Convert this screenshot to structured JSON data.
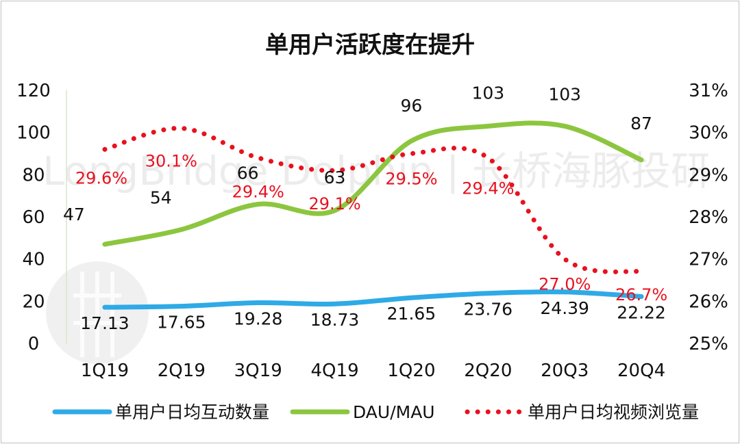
{
  "chart_data": {
    "type": "line",
    "title": "单用户活跃度在提升",
    "watermark": "LongBridge Dolphin | 长桥海豚投研",
    "categories": [
      "1Q19",
      "2Q19",
      "3Q19",
      "4Q19",
      "1Q20",
      "2Q20",
      "20Q3",
      "20Q4"
    ],
    "left_axis": {
      "ylim": [
        0,
        120
      ],
      "ticks": [
        "0",
        "20",
        "40",
        "60",
        "80",
        "100",
        "120"
      ]
    },
    "right_axis": {
      "ylim": [
        25,
        31
      ],
      "ticks": [
        "25%",
        "26%",
        "27%",
        "28%",
        "29%",
        "30%",
        "31%"
      ]
    },
    "series": [
      {
        "name": "单用户日均互动数量",
        "axis": "left",
        "style": "solid",
        "color": "#2eaae6",
        "values": [
          17.13,
          17.65,
          19.28,
          18.73,
          21.65,
          23.76,
          24.39,
          22.22
        ],
        "labels": [
          "17.13",
          "17.65",
          "19.28",
          "18.73",
          "21.65",
          "23.76",
          "24.39",
          "22.22"
        ]
      },
      {
        "name": "DAU/MAU",
        "axis": "left",
        "style": "solid",
        "color": "#8cc63f",
        "values": [
          47,
          54,
          66,
          63,
          96,
          103,
          103,
          87
        ],
        "labels": [
          "47",
          "54",
          "66",
          "63",
          "96",
          "103",
          "103",
          "87"
        ]
      },
      {
        "name": "单用户日均视频浏览量",
        "axis": "right",
        "style": "dotted",
        "color": "#e8111e",
        "values": [
          29.6,
          30.1,
          29.4,
          29.1,
          29.5,
          29.4,
          27.0,
          26.7
        ],
        "labels": [
          "29.6%",
          "30.1%",
          "29.4%",
          "29.1%",
          "29.5%",
          "29.4%",
          "27.0%",
          "26.7%"
        ]
      }
    ],
    "grid": false,
    "legend": "bottom"
  }
}
